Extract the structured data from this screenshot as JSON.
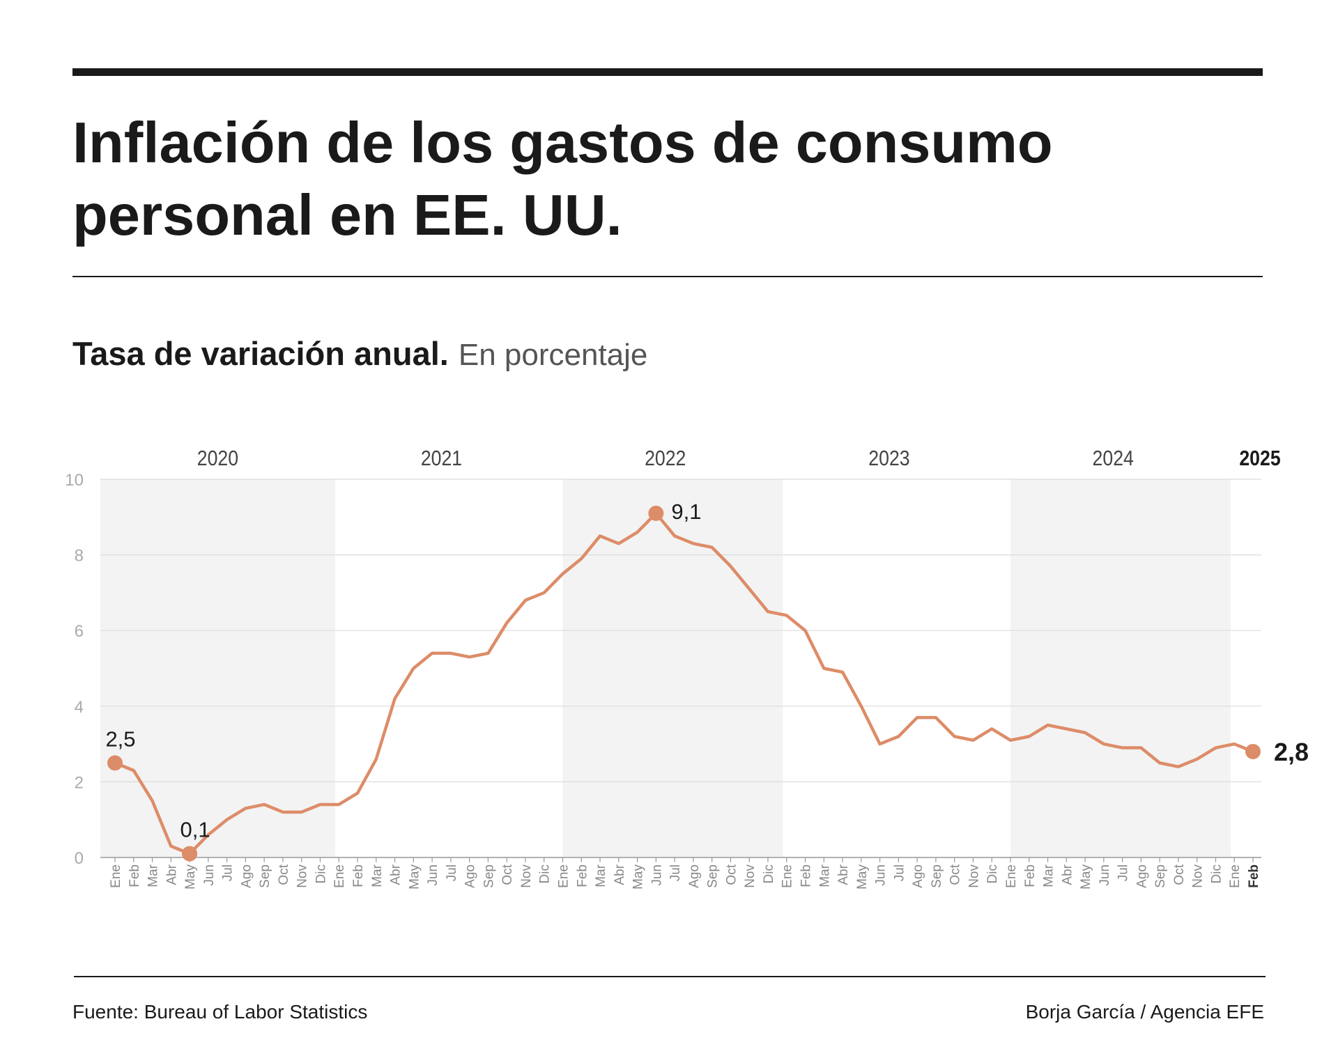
{
  "chart_data": {
    "type": "line",
    "title_lines": [
      "Inflación de los gastos de consumo",
      "personal en EE. UU."
    ],
    "subtitle": "Tasa de variación anual.",
    "subtitle_note": "En porcentaje",
    "source": "Fuente: Bureau of Labor Statistics",
    "credit": "Borja García / Agencia EFE",
    "year_labels": [
      "2020",
      "2021",
      "2022",
      "2023",
      "2024",
      "2025"
    ],
    "categories": [
      "Ene",
      "Feb",
      "Mar",
      "Abr",
      "May",
      "Jun",
      "Jul",
      "Ago",
      "Sep",
      "Oct",
      "Nov",
      "Dic",
      "Ene",
      "Feb",
      "Mar",
      "Abr",
      "May",
      "Jun",
      "Jul",
      "Ago",
      "Sep",
      "Oct",
      "Nov",
      "Dic",
      "Ene",
      "Feb",
      "Mar",
      "Abr",
      "May",
      "Jun",
      "Jul",
      "Ago",
      "Sep",
      "Oct",
      "Nov",
      "Dic",
      "Ene",
      "Feb",
      "Mar",
      "Abr",
      "May",
      "Jun",
      "Jul",
      "Ago",
      "Sep",
      "Oct",
      "Nov",
      "Dic",
      "Ene",
      "Feb",
      "Mar",
      "Abr",
      "May",
      "Jun",
      "Jul",
      "Ago",
      "Sep",
      "Oct",
      "Nov",
      "Dic",
      "Ene",
      "Feb"
    ],
    "series": [
      {
        "color": "#dd8c68",
        "values": [
          2.5,
          2.3,
          1.5,
          0.3,
          0.1,
          0.6,
          1.0,
          1.3,
          1.4,
          1.2,
          1.2,
          1.4,
          1.4,
          1.7,
          2.6,
          4.2,
          5.0,
          5.4,
          5.4,
          5.3,
          5.4,
          6.2,
          6.8,
          7.0,
          7.5,
          7.9,
          8.5,
          8.3,
          8.6,
          9.1,
          8.5,
          8.3,
          8.2,
          7.7,
          7.1,
          6.5,
          6.4,
          6.0,
          5.0,
          4.9,
          4.0,
          3.0,
          3.2,
          3.7,
          3.7,
          3.2,
          3.1,
          3.4,
          3.1,
          3.2,
          3.5,
          3.4,
          3.3,
          3.0,
          2.9,
          2.9,
          2.5,
          2.4,
          2.6,
          2.9,
          3.0,
          2.8
        ],
        "value_labels": [
          "2,5",
          null,
          null,
          null,
          "0,1",
          null,
          null,
          null,
          null,
          null,
          null,
          null,
          null,
          null,
          null,
          null,
          null,
          null,
          null,
          null,
          null,
          null,
          null,
          null,
          null,
          null,
          null,
          null,
          null,
          "9,1",
          null,
          null,
          null,
          null,
          null,
          null,
          null,
          null,
          null,
          null,
          null,
          null,
          null,
          null,
          null,
          null,
          null,
          null,
          null,
          null,
          null,
          null,
          null,
          null,
          null,
          null,
          null,
          null,
          null,
          null,
          null,
          "2,8"
        ]
      }
    ],
    "ylim": [
      0,
      10
    ],
    "yticks": [
      0,
      2,
      4,
      6,
      8,
      10
    ],
    "grid": true,
    "shaded_alternate_years": true
  }
}
